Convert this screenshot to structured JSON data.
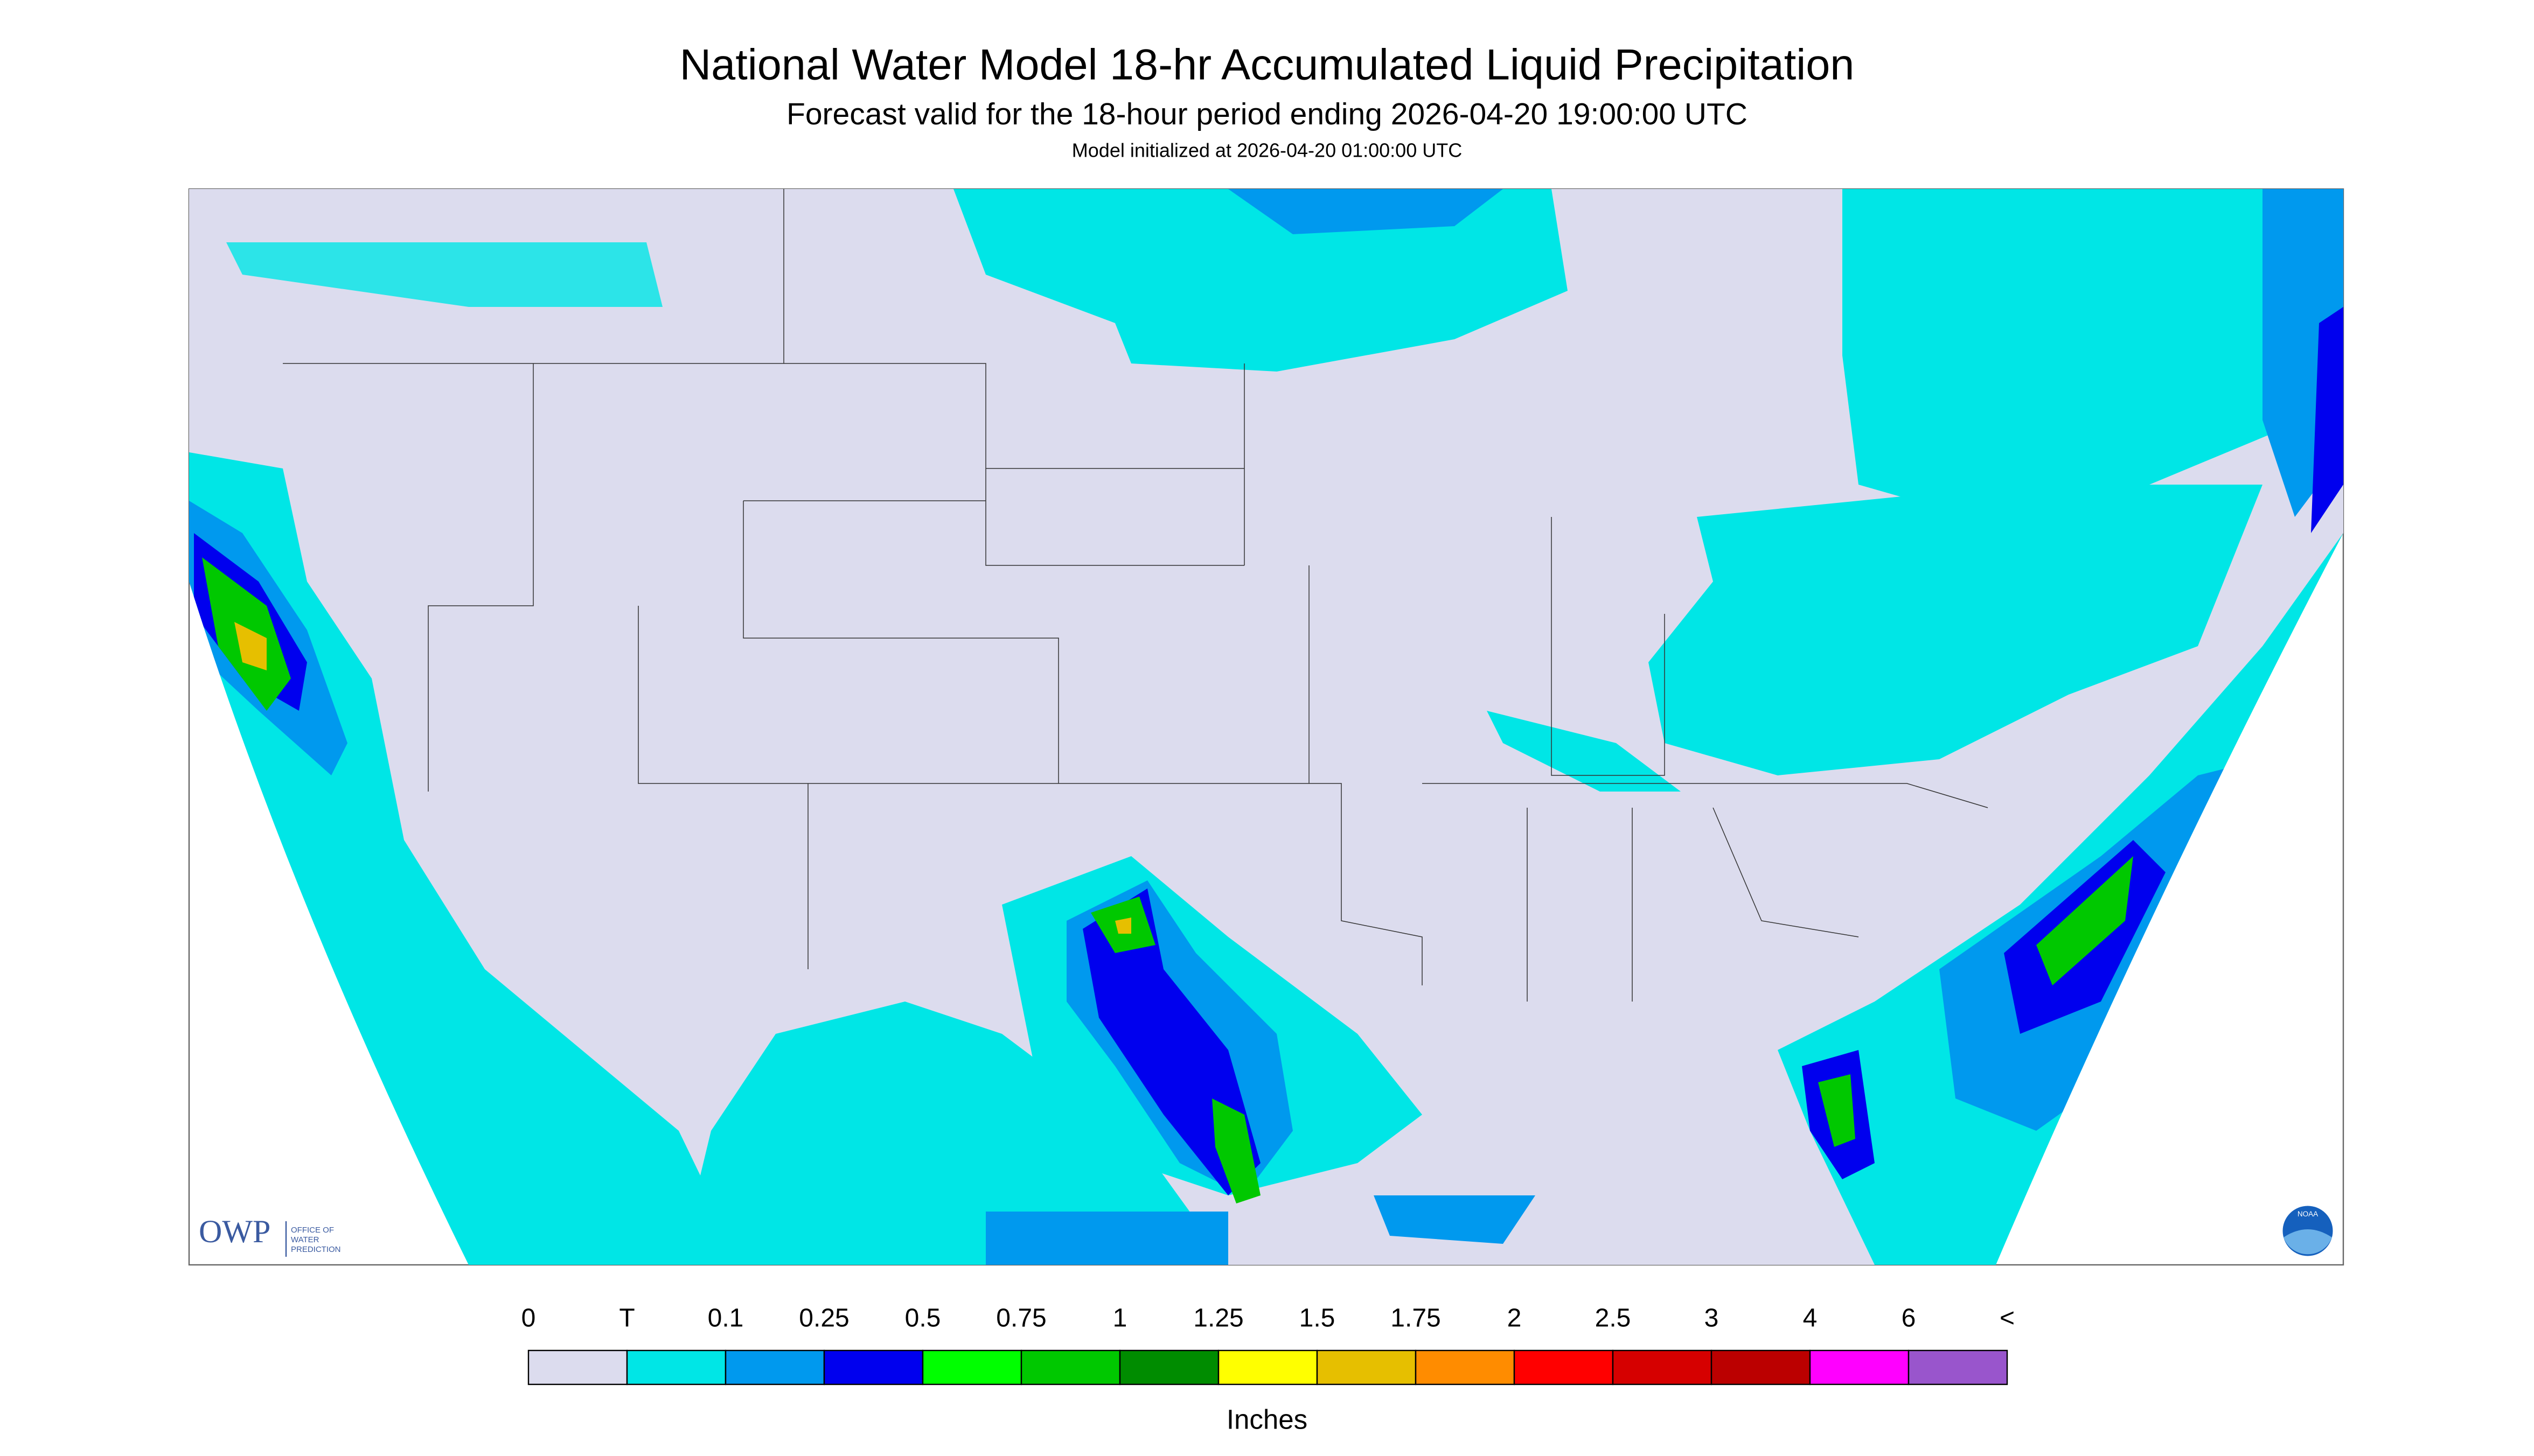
{
  "header": {
    "title": "National Water Model 18-hr Accumulated Liquid Precipitation",
    "subtitle": "Forecast valid for the 18-hour period ending 2026-04-20 19:00:00 UTC",
    "init": "Model initialized at 2026-04-20 01:00:00 UTC"
  },
  "legend": {
    "labels": [
      "0",
      "T",
      "0.1",
      "0.25",
      "0.5",
      "0.75",
      "1",
      "1.25",
      "1.5",
      "1.75",
      "2",
      "2.5",
      "3",
      "4",
      "6",
      "<"
    ],
    "colors": [
      "#dcdcee",
      "#00e6e6",
      "#0099ee",
      "#0000ee",
      "#00ff00",
      "#00c800",
      "#008c00",
      "#ffff00",
      "#e6bf00",
      "#ff8c00",
      "#ff0000",
      "#d60000",
      "#bb0000",
      "#ff00ff",
      "#9955cc"
    ],
    "unit": "Inches"
  },
  "logos": {
    "owp": "OWP",
    "owp_name": [
      "OFFICE OF",
      "WATER",
      "PREDICTION"
    ],
    "noaa": "NOAA"
  }
}
